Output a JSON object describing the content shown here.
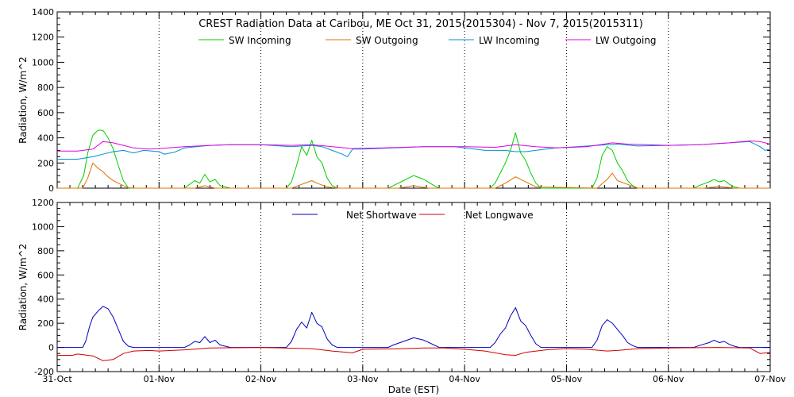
{
  "title": "CREST Radiation Data at Caribou, ME   Oct 31, 2015(2015304) - Nov  7, 2015(2015311)",
  "xlabel": "Date (EST)",
  "colors": {
    "sw_in": "#00d000",
    "sw_out": "#e07000",
    "lw_in": "#0090d0",
    "lw_out": "#e000e0",
    "net_sw": "#0000c0",
    "net_lw": "#d00000"
  },
  "chart_data": [
    {
      "type": "line",
      "ylabel": "Radiation, W/m^2",
      "xlim": [
        0,
        7
      ],
      "ylim": [
        0,
        1400
      ],
      "x_ticks": [
        "31-Oct",
        "01-Nov",
        "02-Nov",
        "03-Nov",
        "04-Nov",
        "05-Nov",
        "06-Nov",
        "07-Nov"
      ],
      "y_ticks": [
        0,
        200,
        400,
        600,
        800,
        1000,
        1200,
        1400
      ],
      "grid": "vertical dotted at day boundaries",
      "legend": "top, single row",
      "series": [
        {
          "name": "SW Incoming",
          "key": "sw_in",
          "x": [
            0,
            0.2,
            0.26,
            0.3,
            0.35,
            0.4,
            0.45,
            0.5,
            0.55,
            0.6,
            0.65,
            0.7,
            0.75,
            1.25,
            1.3,
            1.35,
            1.4,
            1.45,
            1.5,
            1.55,
            1.6,
            1.65,
            1.7,
            2.25,
            2.3,
            2.35,
            2.4,
            2.45,
            2.5,
            2.55,
            2.6,
            2.65,
            2.7,
            2.75,
            3.25,
            3.3,
            3.4,
            3.5,
            3.6,
            3.7,
            3.75,
            4.25,
            4.3,
            4.35,
            4.4,
            4.45,
            4.5,
            4.55,
            4.6,
            4.65,
            4.7,
            4.75,
            5.25,
            5.3,
            5.35,
            5.4,
            5.45,
            5.5,
            5.55,
            5.6,
            5.65,
            5.7,
            5.75,
            6.25,
            6.3,
            6.4,
            6.45,
            6.5,
            6.55,
            6.6,
            6.65,
            6.7,
            7
          ],
          "y": [
            0,
            0,
            100,
            280,
            420,
            460,
            460,
            400,
            310,
            180,
            60,
            0,
            0,
            0,
            30,
            60,
            40,
            110,
            50,
            70,
            20,
            10,
            0,
            0,
            50,
            180,
            330,
            260,
            380,
            250,
            200,
            80,
            20,
            0,
            0,
            20,
            60,
            100,
            70,
            20,
            0,
            0,
            40,
            120,
            200,
            300,
            440,
            280,
            220,
            120,
            40,
            0,
            0,
            80,
            260,
            330,
            300,
            200,
            140,
            60,
            20,
            0,
            0,
            0,
            20,
            50,
            70,
            50,
            60,
            30,
            10,
            0,
            0
          ]
        },
        {
          "name": "SW Outgoing",
          "key": "sw_out",
          "x": [
            0,
            0.25,
            0.3,
            0.35,
            0.4,
            0.45,
            0.5,
            0.55,
            0.6,
            0.65,
            0.7,
            0.75,
            1.35,
            1.45,
            1.55,
            2.3,
            2.4,
            2.5,
            2.55,
            2.65,
            2.75,
            3.35,
            3.5,
            3.65,
            4.3,
            4.4,
            4.5,
            4.55,
            4.6,
            4.7,
            5.3,
            5.4,
            5.45,
            5.5,
            5.6,
            5.7,
            6.35,
            6.5,
            6.65,
            7
          ],
          "y": [
            0,
            0,
            80,
            200,
            160,
            130,
            90,
            60,
            40,
            20,
            5,
            0,
            0,
            20,
            0,
            0,
            30,
            60,
            40,
            10,
            0,
            0,
            20,
            0,
            0,
            40,
            90,
            70,
            50,
            10,
            0,
            70,
            120,
            60,
            30,
            0,
            0,
            15,
            0,
            0
          ]
        },
        {
          "name": "LW Incoming",
          "key": "lw_in",
          "x": [
            0,
            0.2,
            0.35,
            0.45,
            0.55,
            0.65,
            0.75,
            0.85,
            1.0,
            1.05,
            1.15,
            1.25,
            1.5,
            1.7,
            2.0,
            2.3,
            2.5,
            2.6,
            2.7,
            2.8,
            2.85,
            2.9,
            3.0,
            3.3,
            3.6,
            3.9,
            4.1,
            4.2,
            4.4,
            4.5,
            4.6,
            4.7,
            4.8,
            4.9,
            5.1,
            5.3,
            5.5,
            5.7,
            6.0,
            6.3,
            6.6,
            6.8,
            6.9,
            6.95,
            7
          ],
          "y": [
            230,
            230,
            250,
            270,
            290,
            300,
            280,
            300,
            290,
            270,
            285,
            320,
            340,
            345,
            345,
            330,
            340,
            330,
            300,
            270,
            250,
            310,
            310,
            320,
            330,
            330,
            310,
            300,
            300,
            290,
            290,
            300,
            310,
            320,
            330,
            340,
            350,
            335,
            340,
            345,
            360,
            370,
            330,
            300,
            310
          ]
        },
        {
          "name": "LW Outgoing",
          "key": "lw_out",
          "x": [
            0,
            0.2,
            0.35,
            0.45,
            0.55,
            0.65,
            0.75,
            0.9,
            1.0,
            1.25,
            1.5,
            1.7,
            2.0,
            2.3,
            2.5,
            2.7,
            2.9,
            3.2,
            3.6,
            4.0,
            4.3,
            4.5,
            4.7,
            4.9,
            5.2,
            5.45,
            5.6,
            6.0,
            6.3,
            6.6,
            6.8,
            6.9,
            7
          ],
          "y": [
            295,
            295,
            310,
            370,
            360,
            340,
            320,
            310,
            315,
            330,
            340,
            345,
            345,
            340,
            345,
            330,
            315,
            320,
            330,
            330,
            325,
            345,
            330,
            320,
            330,
            360,
            350,
            340,
            345,
            360,
            375,
            370,
            350
          ]
        }
      ]
    },
    {
      "type": "line",
      "ylabel": "Radiation, W/m^2",
      "xlim": [
        0,
        7
      ],
      "ylim": [
        -200,
        1200
      ],
      "x_ticks": [
        "31-Oct",
        "01-Nov",
        "02-Nov",
        "03-Nov",
        "04-Nov",
        "05-Nov",
        "06-Nov",
        "07-Nov"
      ],
      "y_ticks": [
        -200,
        0,
        200,
        400,
        600,
        800,
        1000,
        1200
      ],
      "grid": "vertical dotted at day boundaries",
      "legend": "top, single row",
      "series": [
        {
          "name": "Net Shortwave",
          "key": "net_sw",
          "x": [
            0,
            0.25,
            0.28,
            0.32,
            0.35,
            0.4,
            0.45,
            0.5,
            0.55,
            0.6,
            0.65,
            0.7,
            0.75,
            1.25,
            1.3,
            1.35,
            1.4,
            1.45,
            1.5,
            1.55,
            1.6,
            1.7,
            2.25,
            2.3,
            2.35,
            2.4,
            2.45,
            2.5,
            2.55,
            2.6,
            2.65,
            2.7,
            2.75,
            3.25,
            3.3,
            3.4,
            3.5,
            3.6,
            3.7,
            3.75,
            4.25,
            4.3,
            4.35,
            4.4,
            4.45,
            4.5,
            4.55,
            4.6,
            4.65,
            4.7,
            4.75,
            5.25,
            5.3,
            5.35,
            5.4,
            5.45,
            5.5,
            5.55,
            5.6,
            5.65,
            5.7,
            5.75,
            6.25,
            6.3,
            6.4,
            6.45,
            6.5,
            6.55,
            6.6,
            6.65,
            6.7,
            7
          ],
          "y": [
            0,
            0,
            50,
            180,
            250,
            300,
            340,
            320,
            250,
            150,
            50,
            10,
            0,
            0,
            20,
            50,
            40,
            90,
            40,
            60,
            20,
            0,
            0,
            50,
            150,
            210,
            160,
            290,
            200,
            170,
            70,
            20,
            0,
            0,
            20,
            50,
            80,
            60,
            20,
            0,
            0,
            40,
            110,
            160,
            260,
            330,
            220,
            180,
            100,
            30,
            0,
            0,
            60,
            180,
            230,
            200,
            150,
            100,
            40,
            15,
            0,
            0,
            0,
            15,
            40,
            60,
            40,
            50,
            25,
            10,
            0,
            0
          ]
        },
        {
          "name": "Net Longwave",
          "key": "net_lw",
          "x": [
            0,
            0.15,
            0.2,
            0.35,
            0.45,
            0.55,
            0.65,
            0.75,
            0.9,
            1.0,
            1.25,
            1.5,
            2.0,
            2.5,
            2.7,
            2.9,
            3.0,
            3.4,
            3.6,
            3.8,
            4.0,
            4.2,
            4.4,
            4.5,
            4.6,
            4.8,
            5.0,
            5.2,
            5.4,
            5.5,
            5.7,
            6.0,
            6.5,
            6.8,
            6.9,
            7
          ],
          "y": [
            -65,
            -65,
            -55,
            -70,
            -110,
            -100,
            -50,
            -30,
            -25,
            -30,
            -20,
            -5,
            0,
            -10,
            -30,
            -45,
            -15,
            -10,
            -5,
            -5,
            -15,
            -30,
            -60,
            -65,
            -40,
            -20,
            -10,
            -15,
            -30,
            -25,
            -10,
            -5,
            0,
            -5,
            -50,
            -40
          ]
        }
      ]
    }
  ]
}
